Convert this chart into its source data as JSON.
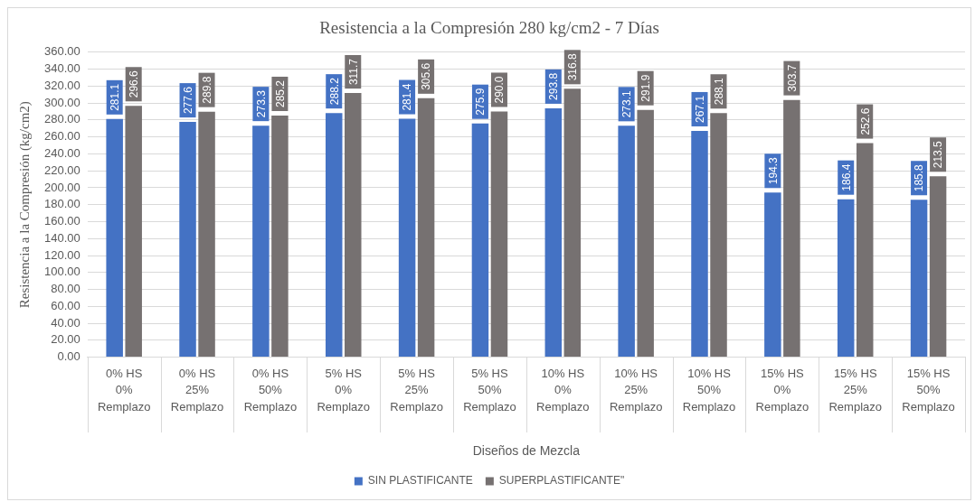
{
  "chart_data": {
    "type": "bar",
    "title": "Resistencia a la Compresión 280 kg/cm2 - 7 Días",
    "xlabel": "Diseños de Mezcla",
    "ylabel": "Resistencia a la Compresión (kg/cm2)",
    "categories": [
      "0% HS\n0%\nRemplazo",
      "0% HS\n25%\nRemplazo",
      "0% HS\n50%\nRemplazo",
      "5% HS\n0%\nRemplazo",
      "5% HS\n25%\nRemplazo",
      "5% HS\n50%\nRemplazo",
      "10% HS\n0%\nRemplazo",
      "10% HS\n25%\nRemplazo",
      "10% HS\n50%\nRemplazo",
      "15% HS\n0%\nRemplazo",
      "15% HS\n25%\nRemplazo",
      "15% HS\n50%\nRemplazo"
    ],
    "series": [
      {
        "name": "SIN PLASTIFICANTE",
        "color": "#4472c4",
        "values": [
          281.1,
          277.6,
          273.3,
          288.2,
          281.4,
          275.9,
          293.8,
          273.1,
          267.1,
          194.3,
          186.4,
          185.8
        ]
      },
      {
        "name": "SUPERPLASTIFICANTE\"",
        "color": "#767171",
        "values": [
          296.6,
          289.8,
          285.2,
          311.7,
          305.6,
          290.0,
          316.8,
          291.9,
          288.1,
          303.7,
          252.6,
          213.5
        ],
        "value_labels": [
          "296.6",
          "289.8",
          "285.2",
          "311.7",
          "305.6",
          "290.0",
          "316.8",
          "291.9",
          "288.1",
          "303.7",
          "252.6",
          "213.5"
        ]
      }
    ],
    "ylim": [
      0,
      360
    ],
    "yticks": [
      {
        "value": 0,
        "label": "0.00"
      },
      {
        "value": 20,
        "label": "20.00"
      },
      {
        "value": 40,
        "label": "40.00"
      },
      {
        "value": 60,
        "label": "60.00"
      },
      {
        "value": 80,
        "label": "80.00"
      },
      {
        "value": 100,
        "label": "100.00"
      },
      {
        "value": 120,
        "label": "120.00"
      },
      {
        "value": 140,
        "label": "140.00"
      },
      {
        "value": 160,
        "label": "160.00"
      },
      {
        "value": 180,
        "label": "180.00"
      },
      {
        "value": 200,
        "label": "200.00"
      },
      {
        "value": 220,
        "label": "220.00"
      },
      {
        "value": 240,
        "label": "240.00"
      },
      {
        "value": 260,
        "label": "260.00"
      },
      {
        "value": 280,
        "label": "280.00"
      },
      {
        "value": 300,
        "label": "300.00"
      },
      {
        "value": 320,
        "label": "320.00"
      },
      {
        "value": 340,
        "label": "340.00"
      },
      {
        "value": 360,
        "label": "360.00"
      }
    ],
    "grid": "y",
    "legend": "bottom",
    "data_labels": true
  }
}
